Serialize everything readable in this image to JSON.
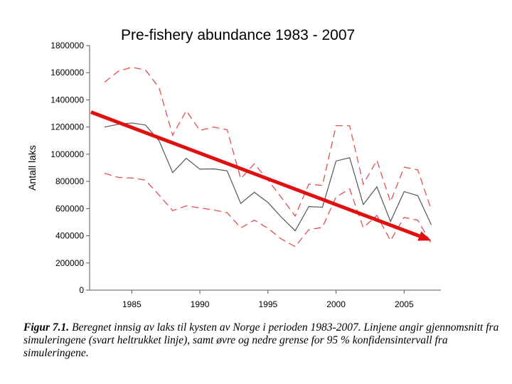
{
  "chart_data": {
    "type": "line",
    "title": "Pre-fishery abundance 1983 - 2007",
    "ylabel": "Antall laks",
    "xlabel": "",
    "x": [
      1983,
      1984,
      1985,
      1986,
      1987,
      1988,
      1989,
      1990,
      1991,
      1992,
      1993,
      1994,
      1995,
      1996,
      1997,
      1998,
      1999,
      2000,
      2001,
      2002,
      2003,
      2004,
      2005,
      2006,
      2007
    ],
    "xlim": [
      1981.9,
      2007.7
    ],
    "ylim": [
      0,
      1800000
    ],
    "xticks": [
      "1985",
      "1990",
      "1995",
      "2000",
      "2005"
    ],
    "yticks": [
      "0",
      "200000",
      "400000",
      "600000",
      "800000",
      "1000000",
      "1200000",
      "1400000",
      "1600000",
      "1800000"
    ],
    "series": [
      {
        "role": "mean",
        "color": "#555555",
        "style": "solid",
        "values": [
          1200000,
          1220000,
          1230000,
          1215000,
          1100000,
          865000,
          970000,
          890000,
          892000,
          878000,
          638000,
          720000,
          645000,
          535000,
          437000,
          615000,
          610000,
          950000,
          975000,
          630000,
          760000,
          505000,
          725000,
          695000,
          480000
        ]
      },
      {
        "role": "upper",
        "color": "#e05050",
        "style": "dashed",
        "values": [
          1530000,
          1610000,
          1640000,
          1620000,
          1490000,
          1140000,
          1320000,
          1175000,
          1200000,
          1180000,
          820000,
          930000,
          810000,
          680000,
          545000,
          780000,
          770000,
          1210000,
          1210000,
          780000,
          955000,
          650000,
          905000,
          885000,
          590000
        ]
      },
      {
        "role": "lower",
        "color": "#e05050",
        "style": "dashed",
        "values": [
          860000,
          830000,
          825000,
          810000,
          700000,
          585000,
          620000,
          605000,
          590000,
          570000,
          458000,
          515000,
          455000,
          375000,
          320000,
          445000,
          462000,
          685000,
          745000,
          460000,
          550000,
          365000,
          535000,
          515000,
          342000
        ]
      }
    ],
    "annotation_arrow": {
      "color": "#e01010",
      "from": [
        1982.0,
        1310000
      ],
      "to": [
        2007.0,
        365000
      ]
    }
  },
  "caption": {
    "label": "Figur 7.1.",
    "text": "Beregnet innsig av laks til kysten av Norge i perioden 1983-2007. Linjene angir gjennomsnitt fra simuleringene (svart heltrukket linje), samt øvre og nedre grense for 95 % konfidensintervall fra simuleringene."
  }
}
